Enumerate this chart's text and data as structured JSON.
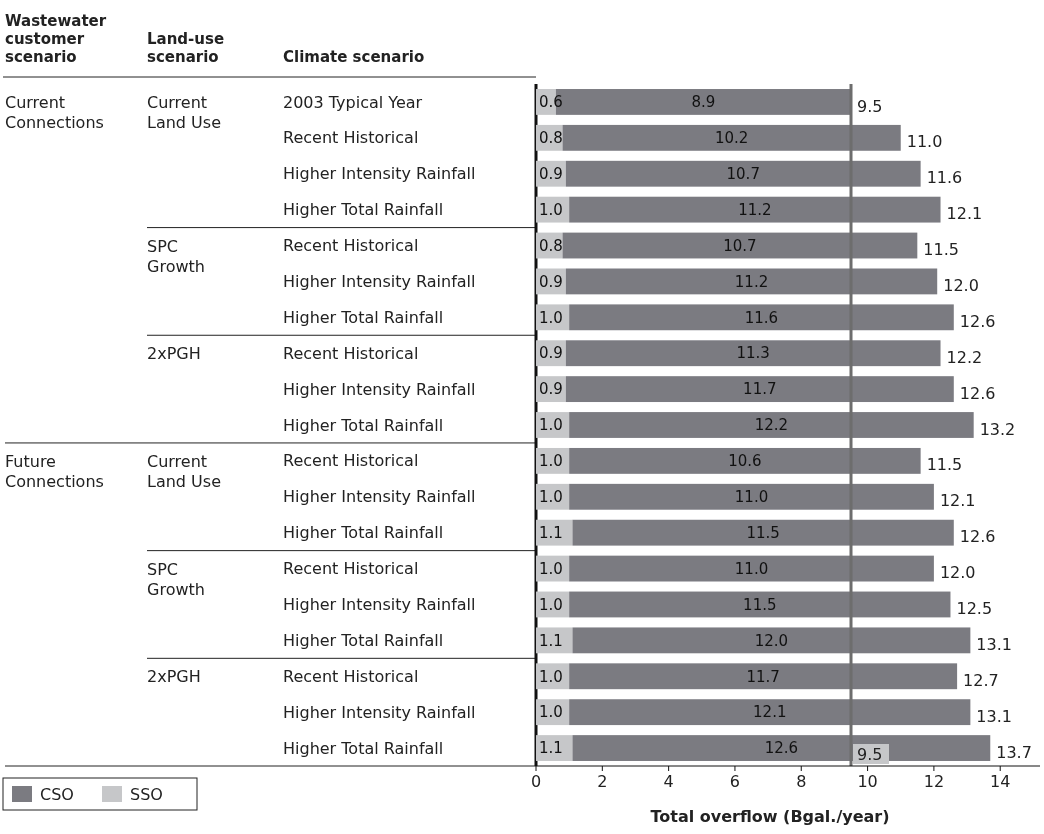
{
  "chart_data": {
    "type": "bar",
    "orientation": "horizontal",
    "stacked": true,
    "xlabel": "Total overflow (Bgal./year)",
    "ylabel": "Climate scenario",
    "categories": [
      "2003 Typical Year",
      "Recent Historical",
      "Higher Intensity Rainfall",
      "Higher Total Rainfall",
      "Recent Historical",
      "Higher Intensity Rainfall",
      "Higher Total Rainfall",
      "Recent Historical",
      "Higher Intensity Rainfall",
      "Higher Total Rainfall",
      "Recent Historical",
      "Higher Intensity Rainfall",
      "Higher Total Rainfall",
      "Recent Historical",
      "Higher Intensity Rainfall",
      "Higher Total Rainfall",
      "Recent Historical",
      "Higher Intensity Rainfall",
      "Higher Total Rainfall"
    ],
    "series": [
      {
        "name": "SSO",
        "color": "#c6c7c9",
        "values": [
          0.6,
          0.8,
          0.9,
          1.0,
          0.8,
          0.9,
          1.0,
          0.9,
          0.9,
          1.0,
          1.0,
          1.0,
          1.1,
          1.0,
          1.0,
          1.1,
          1.0,
          1.0,
          1.1
        ],
        "value_labels": [
          "0.6",
          "0.8",
          "0.9",
          "1.0",
          "0.8",
          "0.9",
          "1.0",
          "0.9",
          "0.9",
          "1.0",
          "1.0",
          "1.0",
          "1.1",
          "1.0",
          "1.0",
          "1.1",
          "1.0",
          "1.0",
          "1.1"
        ]
      },
      {
        "name": "CSO",
        "color": "#7b7b81",
        "values": [
          8.9,
          10.2,
          10.7,
          11.2,
          10.7,
          11.2,
          11.6,
          11.3,
          11.7,
          12.2,
          10.6,
          11.0,
          11.5,
          11.0,
          11.5,
          12.0,
          11.7,
          12.1,
          12.6
        ],
        "value_labels": [
          "8.9",
          "10.2",
          "10.7",
          "11.2",
          "10.7",
          "11.2",
          "11.6",
          "11.3",
          "11.7",
          "12.2",
          "10.6",
          "11.0",
          "11.5",
          "11.0",
          "11.5",
          "12.0",
          "11.7",
          "12.1",
          "12.6"
        ]
      }
    ],
    "totals": [
      "9.5",
      "11.0",
      "11.6",
      "12.1",
      "11.5",
      "12.0",
      "12.6",
      "12.2",
      "12.6",
      "13.2",
      "11.5",
      "12.1",
      "12.6",
      "12.0",
      "12.5",
      "13.1",
      "12.7",
      "13.1",
      "13.7"
    ],
    "data_labels": true,
    "xlim": [
      0,
      15.2
    ],
    "xticks": [
      0,
      2,
      4,
      6,
      8,
      10,
      12,
      14
    ],
    "ref_lines": [
      {
        "axis": "x",
        "value": 9.5,
        "label": "9.5",
        "color": "#6d6d6d"
      }
    ],
    "legend": "bottom left",
    "grid": false,
    "annotations": [
      "Wastewater customer scenario",
      "Land-use scenario",
      "Current Connections",
      "Future Connections",
      "Current Land Use",
      "SPC Growth",
      "2xPGH",
      "Current Land Use",
      "SPC Growth",
      "2xPGH"
    ]
  }
}
